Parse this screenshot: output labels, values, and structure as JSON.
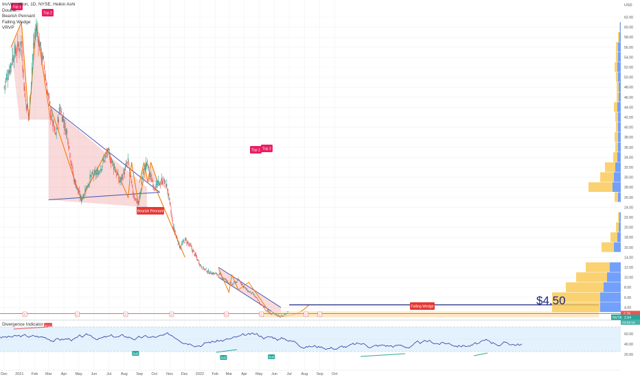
{
  "legend": {
    "symbol_line": "InvVa... ation, 1D, NYSE, Heikin Ashi",
    "lines": [
      "Double...",
      "Bearish Pennant",
      "Falling Wedge",
      "VRVP"
    ]
  },
  "indicator": {
    "title": "Divergence Indicator"
  },
  "price_axis": {
    "currency": "USD",
    "ticks": [
      "62.00",
      "60.00",
      "58.00",
      "56.00",
      "54.00",
      "52.00",
      "50.00",
      "48.00",
      "46.00",
      "44.00",
      "42.00",
      "40.00",
      "38.00",
      "36.00",
      "34.00",
      "32.00",
      "30.00",
      "28.00",
      "26.00",
      "24.00",
      "22.00",
      "20.00",
      "18.00",
      "16.00",
      "14.00",
      "12.00",
      "10.00",
      "8.00",
      "6.00",
      "4.00"
    ],
    "last_price_tag": "2.76",
    "symbol_tag": "NVTA",
    "symbol_price_tag": "2.64",
    "countdown_tag": "03:59:16"
  },
  "indicator_axis": {
    "ticks": [
      "60.00",
      "40.00",
      "20.00"
    ]
  },
  "time_axis": {
    "labels": [
      "Dec",
      "2021",
      "Feb",
      "Mar",
      "Apr",
      "May",
      "Jun",
      "Jul",
      "Aug",
      "Sep",
      "Oct",
      "Nov",
      "Dec",
      "2022",
      "Feb",
      "Mar",
      "Apr",
      "May",
      "Jun",
      "Jul",
      "Aug",
      "Sep",
      "Oct"
    ]
  },
  "annotations": {
    "top_left_1": "Top 1",
    "top_left_2": "Top 2",
    "top_mid_1": "Top 1",
    "top_mid_2": "Top 2",
    "bearish_pennant": "Bearish Pennant",
    "falling_wedge": "Falling Wedge",
    "target_price": "$4.50",
    "bear_tag": "Bear",
    "bull_tags": [
      "Bull",
      "Bull",
      "Bull"
    ],
    "event_markers": [
      "E",
      "E",
      "E",
      "E",
      "E",
      "E",
      "E",
      "E"
    ]
  },
  "colors": {
    "up": "#26a69a",
    "down": "#ef5350",
    "pattern_fill": "#ef9a9a",
    "orange": "#f57c00",
    "blue": "#3f51b5",
    "vp_up": "#5b8ff9",
    "vp_down": "#f9c74f",
    "tag_red": "#e91e63"
  },
  "chart_data": {
    "type": "candlestick",
    "chart_style": "Heikin Ashi",
    "timeframe": "1D",
    "exchange": "NYSE",
    "y_axis_range": [
      2,
      63
    ],
    "price_path": {
      "dates": [
        "2020-12-01",
        "2020-12-18",
        "2021-01-05",
        "2021-01-12",
        "2021-01-20",
        "2021-01-29",
        "2021-02-04",
        "2021-02-18",
        "2021-03-05",
        "2021-03-15",
        "2021-03-24",
        "2021-04-09",
        "2021-04-20",
        "2021-05-06",
        "2021-05-25",
        "2021-06-10",
        "2021-06-28",
        "2021-07-12",
        "2021-07-23",
        "2021-08-09",
        "2021-08-18",
        "2021-08-30",
        "2021-09-08",
        "2021-09-16",
        "2021-09-23",
        "2021-10-04",
        "2021-10-18",
        "2021-10-27",
        "2021-11-08",
        "2021-11-22",
        "2021-12-03",
        "2021-12-17",
        "2022-01-05",
        "2022-01-20",
        "2022-02-10",
        "2022-02-28",
        "2022-03-07",
        "2022-03-21",
        "2022-04-05",
        "2022-04-20",
        "2022-05-05",
        "2022-05-20",
        "2022-06-06",
        "2022-06-17",
        "2022-06-29"
      ],
      "prices": [
        48,
        54,
        57,
        46,
        42,
        56,
        60,
        53,
        43,
        38,
        44,
        38,
        30,
        25.5,
        30,
        31,
        35,
        32,
        29,
        33,
        27,
        24.5,
        31,
        33,
        30,
        28,
        29.5,
        28,
        20,
        16,
        17.5,
        15.5,
        12,
        11,
        10.5,
        9,
        8.5,
        9.5,
        7.5,
        6.5,
        4.5,
        3,
        2.4,
        2.2,
        3.2
      ]
    },
    "patterns": [
      {
        "name": "Double Top",
        "labels": [
          "Top 1",
          "Top 2"
        ],
        "tops": [
          {
            "date": "2021-01-05",
            "price": 61
          },
          {
            "date": "2021-02-04",
            "price": 60.5
          }
        ],
        "neckline": 41.5
      },
      {
        "name": "Bearish Pennant",
        "upper": [
          {
            "date": "2021-03-01",
            "price": 44.5
          },
          {
            "date": "2021-09-16",
            "price": 28
          }
        ],
        "lower": [
          {
            "date": "2021-03-01",
            "price": 25.5
          },
          {
            "date": "2021-09-16",
            "price": 24
          }
        ]
      },
      {
        "name": "Double Top",
        "labels": [
          "Top 1",
          "Top 2"
        ],
        "tops": [
          {
            "date": "2021-09-10",
            "price": 33
          },
          {
            "date": "2021-09-24",
            "price": 33
          }
        ],
        "neckline": 29
      }
    ],
    "falling_wedge": {
      "upper": [
        {
          "date": "2022-02-08",
          "price": 12
        },
        {
          "date": "2022-06-14",
          "price": 4
        }
      ],
      "lower": [
        {
          "date": "2022-02-08",
          "price": 10
        },
        {
          "date": "2022-06-14",
          "price": 2
        }
      ]
    },
    "target_price": 4.5,
    "horizontal_lines": [
      2.76
    ],
    "divergence_indicator": {
      "range": [
        0,
        80
      ],
      "bands": [
        30,
        70
      ],
      "bear_divergence": {
        "date": "2021-01-12"
      },
      "bull_divergences": [
        {
          "date": "2021-08-24"
        },
        {
          "date": "2022-02-18"
        },
        {
          "date": "2022-05-26"
        }
      ]
    }
  }
}
